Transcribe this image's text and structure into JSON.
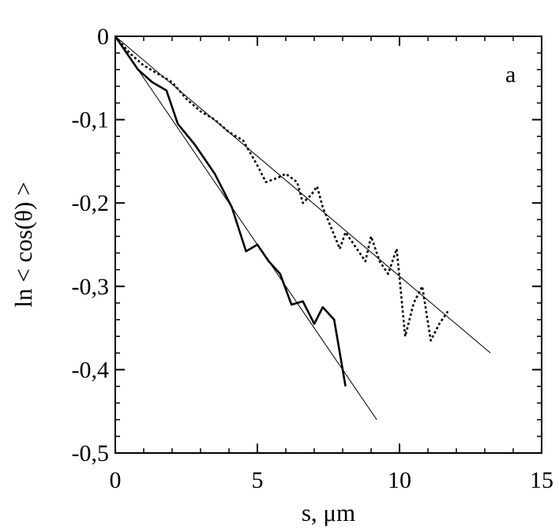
{
  "chart_data": {
    "type": "line",
    "panel_label": "a",
    "xlabel": "s, μm",
    "ylabel": "ln < cos(θ) >",
    "xlim": [
      0,
      15
    ],
    "ylim": [
      -0.5,
      0
    ],
    "x_ticks": [
      0,
      5,
      10,
      15
    ],
    "x_tick_labels": [
      "0",
      "5",
      "10",
      "15"
    ],
    "y_ticks": [
      0,
      -0.1,
      -0.2,
      -0.3,
      -0.4,
      -0.5
    ],
    "y_tick_labels": [
      "0",
      "-0,1",
      "-0,2",
      "-0,3",
      "-0,4",
      "-0,5"
    ],
    "grid": false,
    "series": [
      {
        "style": "solid-thick",
        "x": [
          0,
          0.4,
          0.8,
          1.3,
          1.8,
          2.2,
          2.8,
          3.5,
          4.1,
          4.6,
          5.0,
          5.4,
          5.8,
          6.2,
          6.6,
          7.0,
          7.3,
          7.7,
          8.1
        ],
        "y": [
          0,
          -0.02,
          -0.04,
          -0.055,
          -0.065,
          -0.105,
          -0.13,
          -0.165,
          -0.205,
          -0.258,
          -0.25,
          -0.27,
          -0.285,
          -0.322,
          -0.318,
          -0.345,
          -0.325,
          -0.34,
          -0.42
        ]
      },
      {
        "style": "dotted",
        "x": [
          0,
          0.5,
          1.0,
          1.5,
          2.0,
          2.5,
          3.0,
          3.5,
          4.0,
          4.5,
          5.0,
          5.3,
          5.7,
          6.0,
          6.4,
          6.6,
          6.9,
          7.1,
          7.3,
          7.6,
          7.9,
          8.1,
          8.5,
          8.8,
          9.0,
          9.3,
          9.6,
          9.9,
          10.2,
          10.5,
          10.8,
          11.1,
          11.4,
          11.7
        ],
        "y": [
          0,
          -0.02,
          -0.035,
          -0.045,
          -0.055,
          -0.075,
          -0.09,
          -0.1,
          -0.115,
          -0.125,
          -0.155,
          -0.175,
          -0.17,
          -0.165,
          -0.175,
          -0.2,
          -0.19,
          -0.18,
          -0.205,
          -0.23,
          -0.255,
          -0.235,
          -0.255,
          -0.27,
          -0.24,
          -0.27,
          -0.285,
          -0.255,
          -0.36,
          -0.32,
          -0.3,
          -0.365,
          -0.345,
          -0.33
        ]
      },
      {
        "style": "thin-fit",
        "x": [
          0,
          9.2
        ],
        "y": [
          0,
          -0.46
        ]
      },
      {
        "style": "thin-fit",
        "x": [
          0,
          13.2
        ],
        "y": [
          0,
          -0.38
        ]
      }
    ]
  }
}
